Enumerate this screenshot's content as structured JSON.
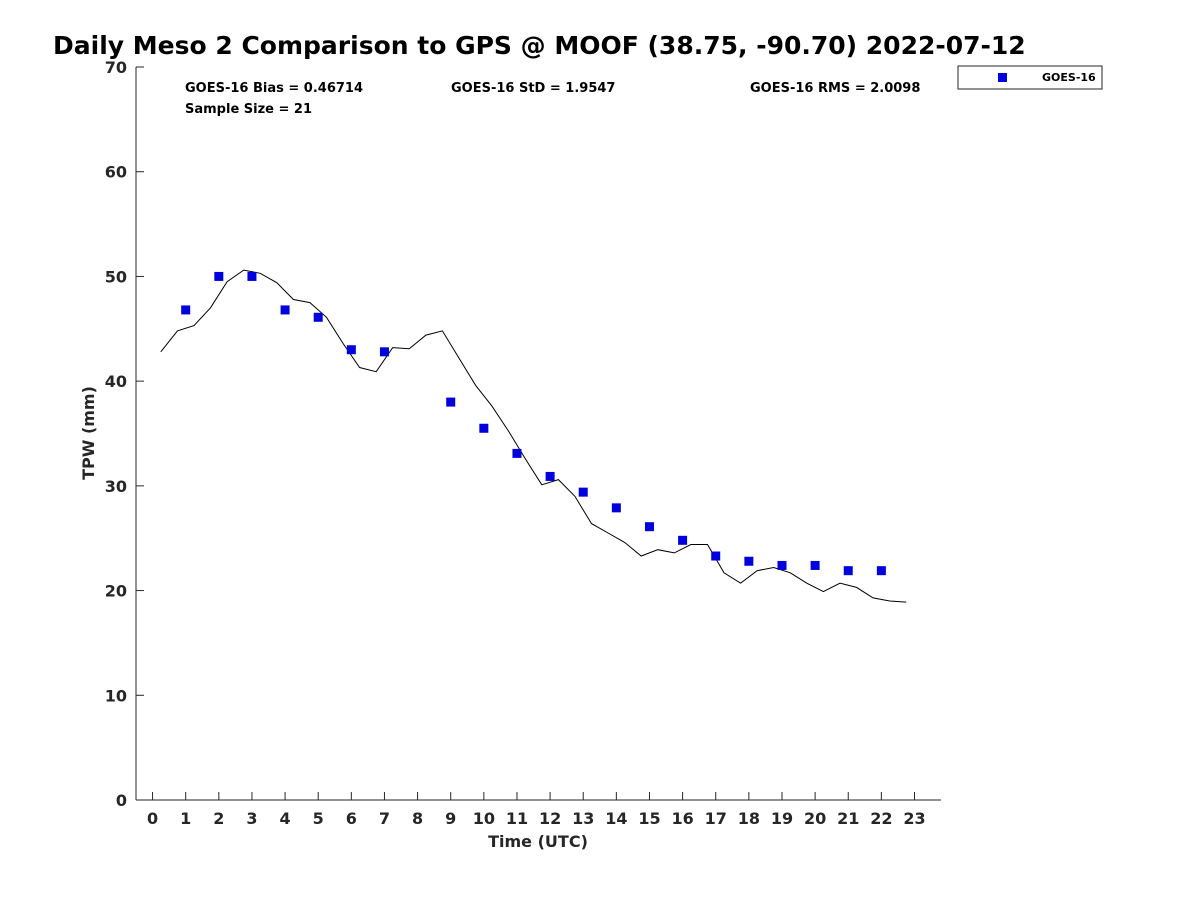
{
  "chart_data": {
    "type": "scatter",
    "title": "Daily Meso 2 Comparison to GPS @ MOOF (38.75, -90.70) 2022-07-12",
    "xlabel": "Time (UTC)",
    "ylabel": "TPW (mm)",
    "xlim": [
      -0.5,
      23.8
    ],
    "ylim": [
      0,
      70
    ],
    "x_ticks": [
      0,
      1,
      2,
      3,
      4,
      5,
      6,
      7,
      8,
      9,
      10,
      11,
      12,
      13,
      14,
      15,
      16,
      17,
      18,
      19,
      20,
      21,
      22,
      23
    ],
    "y_ticks": [
      0,
      10,
      20,
      30,
      40,
      50,
      60,
      70
    ],
    "grid": false,
    "legend_position": "top-right",
    "stats": {
      "bias": "GOES-16 Bias = 0.46714",
      "sample_size": "Sample Size = 21",
      "std": "GOES-16 StD = 1.9547",
      "rms": "GOES-16 RMS = 2.0098"
    },
    "series": [
      {
        "name": "GOES-16",
        "kind": "markers",
        "color": "#0000dd",
        "marker": "square",
        "x": [
          1,
          2,
          3,
          4,
          5,
          6,
          7,
          9,
          10,
          11,
          12,
          13,
          14,
          15,
          16,
          17,
          18,
          19,
          20,
          21,
          22
        ],
        "y": [
          46.8,
          50.0,
          50.0,
          46.8,
          46.1,
          43.0,
          42.8,
          38.0,
          35.5,
          33.1,
          30.9,
          29.4,
          27.9,
          26.1,
          24.8,
          23.3,
          22.8,
          22.4,
          22.4,
          21.9,
          21.9
        ]
      },
      {
        "kind": "line",
        "color": "#000000",
        "x": [
          0.25,
          0.75,
          1.25,
          1.75,
          2.25,
          2.75,
          3.25,
          3.75,
          4.25,
          4.75,
          5.25,
          5.75,
          6.25,
          6.75,
          7.25,
          7.75,
          8.25,
          8.75,
          9.25,
          9.75,
          10.25,
          10.75,
          11.25,
          11.75,
          12.25,
          12.75,
          13.25,
          13.75,
          14.25,
          14.75,
          15.25,
          15.75,
          16.25,
          16.75,
          17.25,
          17.75,
          18.25,
          18.75,
          19.25,
          19.75,
          20.25,
          20.75,
          21.25,
          21.75,
          22.25,
          22.75
        ],
        "y": [
          42.8,
          44.8,
          45.3,
          47.0,
          49.5,
          50.6,
          50.3,
          49.4,
          47.8,
          47.5,
          46.1,
          43.6,
          41.3,
          40.9,
          43.2,
          43.1,
          44.4,
          44.8,
          42.2,
          39.6,
          37.6,
          35.2,
          32.6,
          30.1,
          30.6,
          29.0,
          26.4,
          25.5,
          24.6,
          23.3,
          23.9,
          23.6,
          24.4,
          24.4,
          21.7,
          20.7,
          21.9,
          22.2,
          21.7,
          20.7,
          19.9,
          20.7,
          20.3,
          19.3,
          19.0,
          18.9
        ]
      }
    ]
  }
}
